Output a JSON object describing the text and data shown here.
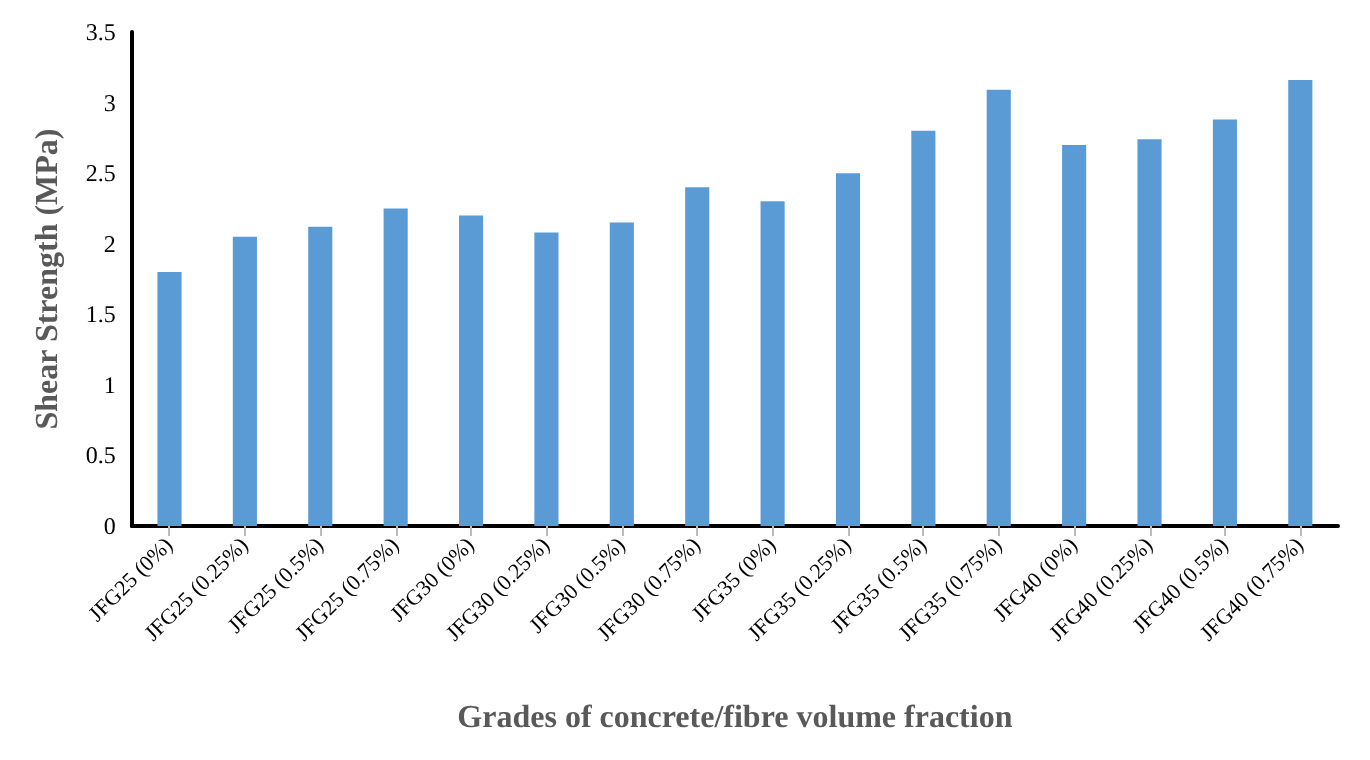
{
  "chart_data": {
    "type": "bar",
    "xlabel": "Grades of concrete/fibre volume fraction",
    "ylabel": "Shear Strength (MPa)",
    "categories": [
      "JFG25 (0%)",
      "JFG25 (0.25%)",
      "JFG25 (0.5%)",
      "JFG25 (0.75%)",
      "JFG30 (0%)",
      "JFG30 (0.25%)",
      "JFG30 (0.5%)",
      "JFG30 (0.75%)",
      "JFG35 (0%)",
      "JFG35 (0.25%)",
      "JFG35 (0.5%)",
      "JFG35 (0.75%)",
      "JFG40 (0%)",
      "JFG40 (0.25%)",
      "JFG40 (0.5%)",
      "JFG40 (0.75%)"
    ],
    "values": [
      1.8,
      2.05,
      2.12,
      2.25,
      2.2,
      2.08,
      2.15,
      2.4,
      2.3,
      2.5,
      2.8,
      3.09,
      2.7,
      2.74,
      2.88,
      3.16
    ],
    "color": "#5b9bd5",
    "ylim": [
      0,
      3.5
    ],
    "yticks": [
      0,
      0.5,
      1,
      1.5,
      2,
      2.5,
      3,
      3.5
    ]
  }
}
